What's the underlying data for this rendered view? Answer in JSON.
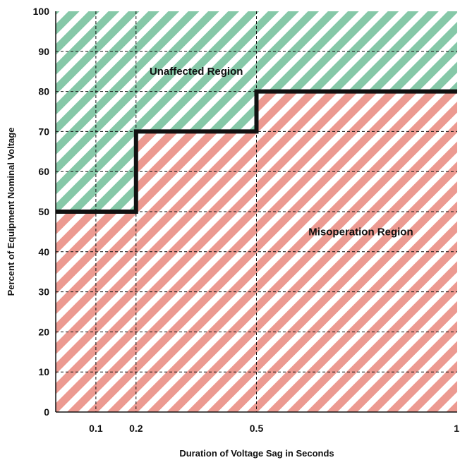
{
  "chart_data": {
    "type": "area",
    "title": "",
    "xlabel": "Duration of Voltage Sag in Seconds",
    "ylabel": "Percent of Equipment Nominal Voltage",
    "xlim": [
      0,
      1
    ],
    "ylim": [
      0,
      100
    ],
    "x_ticks": [
      {
        "value": 0.1,
        "label": "0.1"
      },
      {
        "value": 0.2,
        "label": "0.2"
      },
      {
        "value": 0.5,
        "label": "0.5"
      },
      {
        "value": 1,
        "label": "1"
      }
    ],
    "y_ticks": [
      {
        "value": 0,
        "label": "0"
      },
      {
        "value": 10,
        "label": "10"
      },
      {
        "value": 20,
        "label": "20"
      },
      {
        "value": 30,
        "label": "30"
      },
      {
        "value": 40,
        "label": "40"
      },
      {
        "value": 50,
        "label": "50"
      },
      {
        "value": 60,
        "label": "60"
      },
      {
        "value": 70,
        "label": "70"
      },
      {
        "value": 80,
        "label": "80"
      },
      {
        "value": 90,
        "label": "90"
      },
      {
        "value": 100,
        "label": "100"
      }
    ],
    "grid": true,
    "threshold_curve": [
      {
        "x": 0,
        "y": 50
      },
      {
        "x": 0.2,
        "y": 50
      },
      {
        "x": 0.2,
        "y": 70
      },
      {
        "x": 0.5,
        "y": 70
      },
      {
        "x": 0.5,
        "y": 80
      },
      {
        "x": 1,
        "y": 80
      }
    ],
    "regions": [
      {
        "label": "Unaffected Region",
        "side": "above",
        "color": "#86c8a8",
        "label_x": 0.35,
        "label_y": 85
      },
      {
        "label": "Misoperation Region",
        "side": "below",
        "color": "#ec9a91",
        "label_x": 0.76,
        "label_y": 45
      }
    ],
    "line_color": "#111111"
  }
}
